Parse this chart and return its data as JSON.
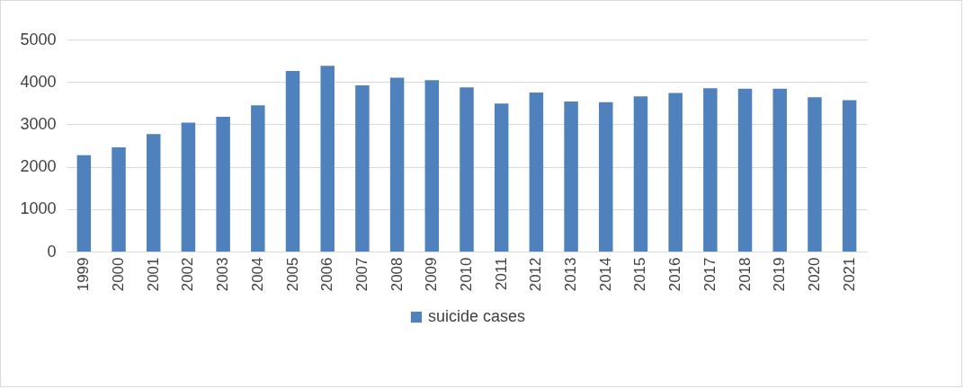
{
  "chart_data": {
    "type": "bar",
    "categories": [
      "1999",
      "2000",
      "2001",
      "2002",
      "2003",
      "2004",
      "2005",
      "2006",
      "2007",
      "2008",
      "2009",
      "2010",
      "2011",
      "2012",
      "2013",
      "2014",
      "2015",
      "2016",
      "2017",
      "2018",
      "2019",
      "2020",
      "2021"
    ],
    "series": [
      {
        "name": "suicide cases",
        "color": "#4f81bd",
        "values": [
          2270,
          2460,
          2770,
          3040,
          3180,
          3450,
          4260,
          4380,
          3920,
          4100,
          4040,
          3870,
          3490,
          3750,
          3540,
          3520,
          3660,
          3740,
          3850,
          3840,
          3840,
          3640,
          3570
        ]
      }
    ],
    "ylim": [
      0,
      5000
    ],
    "yticks": [
      0,
      1000,
      2000,
      3000,
      4000,
      5000
    ],
    "grid": "y",
    "legend": "bottom"
  }
}
